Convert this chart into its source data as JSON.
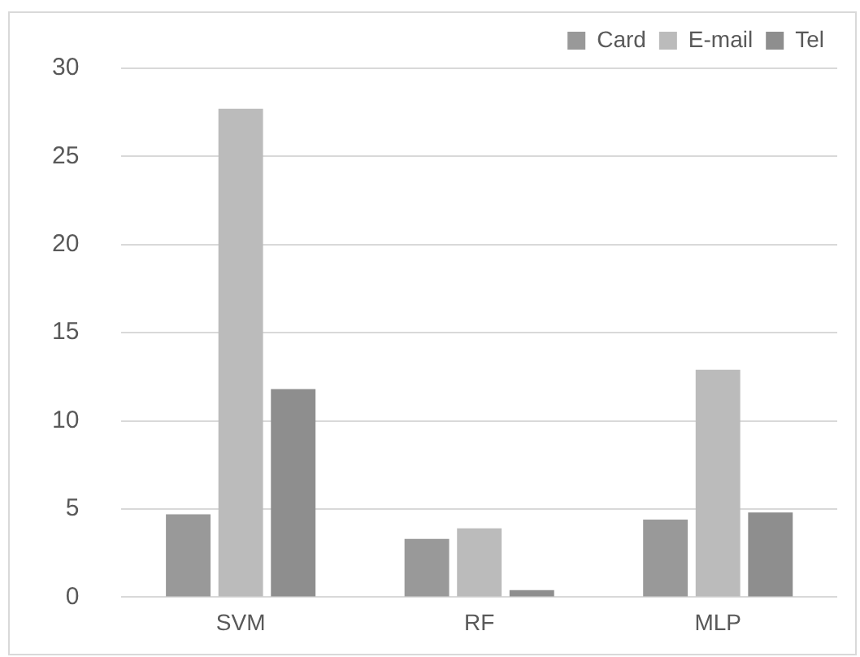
{
  "chart_data": {
    "type": "bar",
    "categories": [
      "SVM",
      "RF",
      "MLP"
    ],
    "series": [
      {
        "name": "Card",
        "color": "#999999",
        "values": [
          4.7,
          3.3,
          4.4
        ]
      },
      {
        "name": "E-mail",
        "color": "#bbbbbb",
        "values": [
          27.7,
          3.9,
          12.9
        ]
      },
      {
        "name": "Tel",
        "color": "#8e8e8e",
        "values": [
          11.8,
          0.4,
          4.8
        ]
      }
    ],
    "ylim": [
      0,
      30
    ],
    "yticks": [
      0,
      5,
      10,
      15,
      20,
      25,
      30
    ],
    "grid": "y",
    "legend": "top right"
  }
}
